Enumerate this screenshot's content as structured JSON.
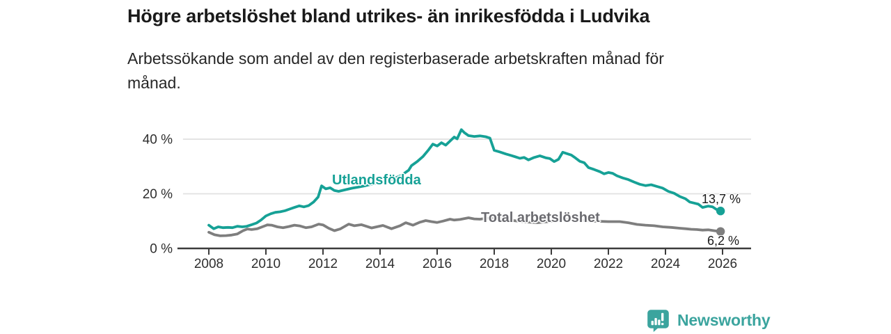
{
  "chart_data": {
    "type": "line",
    "title": "Högre arbetslöshet bland utrikes- än inrikesfödda i Ludvika",
    "subtitle": "Arbetssökande som andel av den registerbaserade arbetskraften månad för månad.",
    "unit": "%",
    "x_axis": {
      "ticks": [
        2008,
        2010,
        2012,
        2014,
        2016,
        2018,
        2020,
        2022,
        2024,
        2026
      ],
      "range": [
        2006.9,
        2027.0
      ]
    },
    "y_axis": {
      "ticks": [
        {
          "value": 0,
          "label": "0 %"
        },
        {
          "value": 20,
          "label": "20 %"
        },
        {
          "value": 40,
          "label": "40 %"
        }
      ],
      "gridlines": [
        20,
        40
      ],
      "range": [
        0,
        47.5
      ]
    },
    "legend_position": "inline-labels",
    "grid": "horizontal-only",
    "series": [
      {
        "name": "Utlandsfödda",
        "color": "#16A196",
        "end_label": "13,7 %",
        "end_value": 13.7,
        "points": [
          [
            2008.0,
            8.5
          ],
          [
            2008.17,
            7.2
          ],
          [
            2008.33,
            7.9
          ],
          [
            2008.5,
            7.6
          ],
          [
            2008.67,
            7.7
          ],
          [
            2008.83,
            7.6
          ],
          [
            2009.0,
            8.1
          ],
          [
            2009.17,
            7.9
          ],
          [
            2009.33,
            8.1
          ],
          [
            2009.5,
            8.7
          ],
          [
            2009.67,
            9.3
          ],
          [
            2009.83,
            10.4
          ],
          [
            2010.0,
            11.9
          ],
          [
            2010.17,
            12.7
          ],
          [
            2010.33,
            13.2
          ],
          [
            2010.5,
            13.4
          ],
          [
            2010.67,
            13.8
          ],
          [
            2010.83,
            14.4
          ],
          [
            2011.0,
            15.0
          ],
          [
            2011.17,
            15.6
          ],
          [
            2011.33,
            15.2
          ],
          [
            2011.5,
            15.7
          ],
          [
            2011.67,
            17.0
          ],
          [
            2011.83,
            18.8
          ],
          [
            2011.95,
            22.9
          ],
          [
            2012.1,
            21.8
          ],
          [
            2012.25,
            22.2
          ],
          [
            2012.4,
            21.2
          ],
          [
            2012.55,
            20.9
          ],
          [
            2012.75,
            21.4
          ],
          [
            2013.0,
            22.0
          ],
          [
            2013.25,
            22.5
          ],
          [
            2013.5,
            23.0
          ],
          [
            2013.75,
            23.6
          ],
          [
            2014.0,
            24.3
          ],
          [
            2014.25,
            24.9
          ],
          [
            2014.5,
            25.6
          ],
          [
            2014.75,
            26.8
          ],
          [
            2015.0,
            28.6
          ],
          [
            2015.1,
            30.3
          ],
          [
            2015.3,
            31.8
          ],
          [
            2015.5,
            33.6
          ],
          [
            2015.7,
            36.1
          ],
          [
            2015.85,
            38.2
          ],
          [
            2016.0,
            37.5
          ],
          [
            2016.15,
            38.7
          ],
          [
            2016.3,
            37.8
          ],
          [
            2016.45,
            39.3
          ],
          [
            2016.6,
            40.8
          ],
          [
            2016.7,
            40.1
          ],
          [
            2016.85,
            43.5
          ],
          [
            2016.95,
            42.4
          ],
          [
            2017.1,
            41.3
          ],
          [
            2017.3,
            41.0
          ],
          [
            2017.5,
            41.2
          ],
          [
            2017.7,
            40.9
          ],
          [
            2017.85,
            40.4
          ],
          [
            2018.0,
            35.9
          ],
          [
            2018.2,
            35.3
          ],
          [
            2018.4,
            34.6
          ],
          [
            2018.6,
            34.0
          ],
          [
            2018.75,
            33.5
          ],
          [
            2018.9,
            33.0
          ],
          [
            2019.05,
            33.3
          ],
          [
            2019.2,
            32.4
          ],
          [
            2019.4,
            33.3
          ],
          [
            2019.6,
            33.9
          ],
          [
            2019.8,
            33.2
          ],
          [
            2019.95,
            32.9
          ],
          [
            2020.1,
            31.8
          ],
          [
            2020.25,
            32.6
          ],
          [
            2020.4,
            35.2
          ],
          [
            2020.55,
            34.7
          ],
          [
            2020.7,
            34.2
          ],
          [
            2020.85,
            33.1
          ],
          [
            2021.0,
            31.9
          ],
          [
            2021.15,
            31.4
          ],
          [
            2021.3,
            29.6
          ],
          [
            2021.5,
            28.9
          ],
          [
            2021.7,
            28.1
          ],
          [
            2021.85,
            27.3
          ],
          [
            2022.0,
            27.8
          ],
          [
            2022.15,
            27.5
          ],
          [
            2022.3,
            26.6
          ],
          [
            2022.5,
            25.8
          ],
          [
            2022.7,
            25.2
          ],
          [
            2022.9,
            24.3
          ],
          [
            2023.1,
            23.5
          ],
          [
            2023.3,
            23.0
          ],
          [
            2023.5,
            23.3
          ],
          [
            2023.7,
            22.7
          ],
          [
            2023.9,
            22.1
          ],
          [
            2024.1,
            20.9
          ],
          [
            2024.3,
            20.2
          ],
          [
            2024.5,
            19.0
          ],
          [
            2024.7,
            18.2
          ],
          [
            2024.85,
            17.0
          ],
          [
            2025.0,
            16.6
          ],
          [
            2025.15,
            16.2
          ],
          [
            2025.3,
            15.0
          ],
          [
            2025.5,
            15.5
          ],
          [
            2025.65,
            15.2
          ],
          [
            2025.8,
            14.2
          ],
          [
            2025.93,
            13.7
          ]
        ]
      },
      {
        "name": "Total arbetslöshet",
        "color": "#7E7E7E",
        "label_color": "#6B6B70",
        "end_label": "6,2 %",
        "end_value": 6.2,
        "points": [
          [
            2008.0,
            5.9
          ],
          [
            2008.2,
            5.0
          ],
          [
            2008.4,
            4.6
          ],
          [
            2008.6,
            4.7
          ],
          [
            2008.8,
            4.9
          ],
          [
            2009.0,
            5.3
          ],
          [
            2009.2,
            6.5
          ],
          [
            2009.35,
            7.1
          ],
          [
            2009.5,
            6.9
          ],
          [
            2009.7,
            7.2
          ],
          [
            2009.85,
            7.8
          ],
          [
            2010.05,
            8.6
          ],
          [
            2010.2,
            8.5
          ],
          [
            2010.4,
            7.9
          ],
          [
            2010.6,
            7.6
          ],
          [
            2010.8,
            8.0
          ],
          [
            2011.0,
            8.5
          ],
          [
            2011.2,
            8.2
          ],
          [
            2011.4,
            7.6
          ],
          [
            2011.6,
            7.9
          ],
          [
            2011.85,
            8.9
          ],
          [
            2012.0,
            8.6
          ],
          [
            2012.2,
            7.4
          ],
          [
            2012.4,
            6.5
          ],
          [
            2012.6,
            7.1
          ],
          [
            2012.9,
            8.9
          ],
          [
            2013.1,
            8.3
          ],
          [
            2013.35,
            8.7
          ],
          [
            2013.55,
            8.0
          ],
          [
            2013.7,
            7.5
          ],
          [
            2014.1,
            8.4
          ],
          [
            2014.4,
            7.2
          ],
          [
            2014.7,
            8.3
          ],
          [
            2014.9,
            9.4
          ],
          [
            2015.15,
            8.5
          ],
          [
            2015.4,
            9.6
          ],
          [
            2015.6,
            10.2
          ],
          [
            2015.8,
            9.8
          ],
          [
            2016.0,
            9.5
          ],
          [
            2016.2,
            10.0
          ],
          [
            2016.45,
            10.7
          ],
          [
            2016.6,
            10.4
          ],
          [
            2016.8,
            10.6
          ],
          [
            2017.1,
            11.2
          ],
          [
            2017.3,
            10.8
          ],
          [
            2017.5,
            10.7
          ],
          [
            2017.8,
            11.1
          ],
          [
            2018.1,
            11.0
          ],
          [
            2018.5,
            10.4
          ],
          [
            2019.0,
            9.8
          ],
          [
            2019.5,
            9.4
          ],
          [
            2020.0,
            9.9
          ],
          [
            2020.5,
            10.6
          ],
          [
            2021.0,
            10.4
          ],
          [
            2021.5,
            10.0
          ],
          [
            2022.0,
            9.8
          ],
          [
            2022.4,
            9.8
          ],
          [
            2022.7,
            9.4
          ],
          [
            2023.0,
            8.8
          ],
          [
            2023.3,
            8.5
          ],
          [
            2023.6,
            8.3
          ],
          [
            2023.9,
            7.9
          ],
          [
            2024.2,
            7.7
          ],
          [
            2024.5,
            7.4
          ],
          [
            2024.7,
            7.2
          ],
          [
            2024.9,
            7.0
          ],
          [
            2025.1,
            6.9
          ],
          [
            2025.3,
            6.7
          ],
          [
            2025.5,
            6.8
          ],
          [
            2025.7,
            6.5
          ],
          [
            2025.93,
            6.2
          ]
        ]
      }
    ]
  },
  "footer": {
    "brand": "Newsworthy",
    "logo_icon": "speech-bubble-bar-chart-exclamation",
    "brand_color": "#3BA49E"
  },
  "colors": {
    "accent_teal": "#16A196",
    "line_gray": "#7E7E7E",
    "axis": "#3C3C3C",
    "gridline": "#E0E0E0",
    "title_text": "#1A1A1A"
  }
}
